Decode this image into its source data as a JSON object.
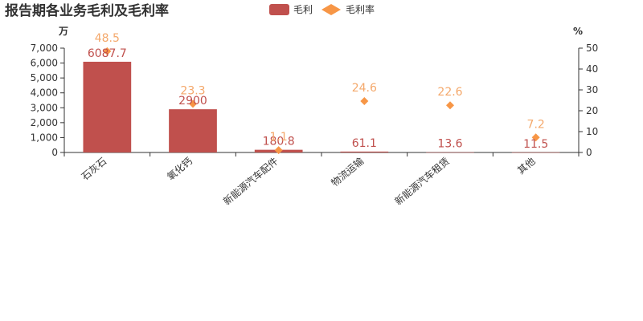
{
  "chart_data": {
    "type": "bar",
    "title": "报告期各业务毛利及毛利率",
    "categories": [
      "石灰石",
      "氧化钙",
      "新能源汽车配件",
      "物流运输",
      "新能源汽车租赁",
      "其他"
    ],
    "series": [
      {
        "name": "毛利",
        "type": "bar",
        "axis": "left",
        "color": "#c0504d",
        "values": [
          6087.7,
          2900,
          180.8,
          61.1,
          13.6,
          11.5
        ],
        "labels": [
          "6087.7",
          "2900",
          "180.8",
          "61.1",
          "13.6",
          "11.5"
        ]
      },
      {
        "name": "毛利率",
        "type": "scatter",
        "axis": "right",
        "color": "#f79646",
        "label_color": "#f4a86b",
        "marker": "diamond",
        "values": [
          48.5,
          23.3,
          1.1,
          24.6,
          22.6,
          7.2
        ],
        "labels": [
          "48.5",
          "23.3",
          "1.1",
          "24.6",
          "22.6",
          "7.2"
        ]
      }
    ],
    "y_left": {
      "unit": "万",
      "ylim": [
        0,
        7000
      ],
      "ticks": [
        0,
        1000,
        2000,
        3000,
        4000,
        5000,
        6000,
        7000
      ],
      "tick_labels": [
        "0",
        "1,000",
        "2,000",
        "3,000",
        "4,000",
        "5,000",
        "6,000",
        "7,000"
      ]
    },
    "y_right": {
      "unit": "%",
      "ylim": [
        0,
        50
      ],
      "ticks": [
        0,
        10,
        20,
        30,
        40,
        50
      ],
      "tick_labels": [
        "0",
        "10",
        "20",
        "30",
        "40",
        "50"
      ]
    },
    "grid": false,
    "legend_position": "top-center",
    "axis_color": "#333333",
    "text_color": "#333333"
  }
}
